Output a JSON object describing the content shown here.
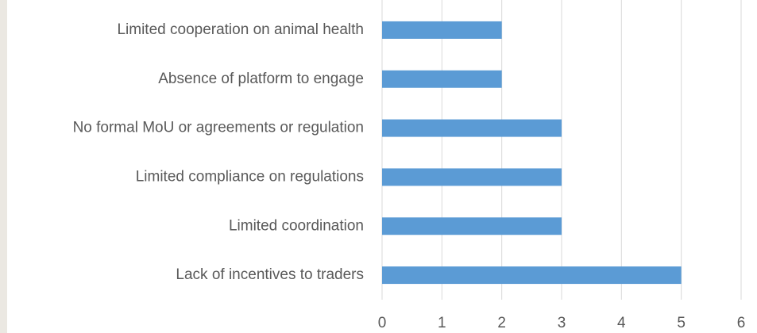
{
  "chart_data": {
    "type": "barh",
    "categories": [
      "Limited cooperation on animal health",
      "Absence of platform to engage",
      "No formal MoU or agreements or regulation",
      "Limited compliance on regulations",
      "Limited coordination",
      "Lack of incentives to traders"
    ],
    "values": [
      2,
      2,
      3,
      3,
      3,
      5
    ],
    "color": "#5b9bd5",
    "xlim": [
      0,
      6
    ],
    "xticks": [
      0,
      1,
      2,
      3,
      4,
      5,
      6
    ],
    "grid": true
  }
}
